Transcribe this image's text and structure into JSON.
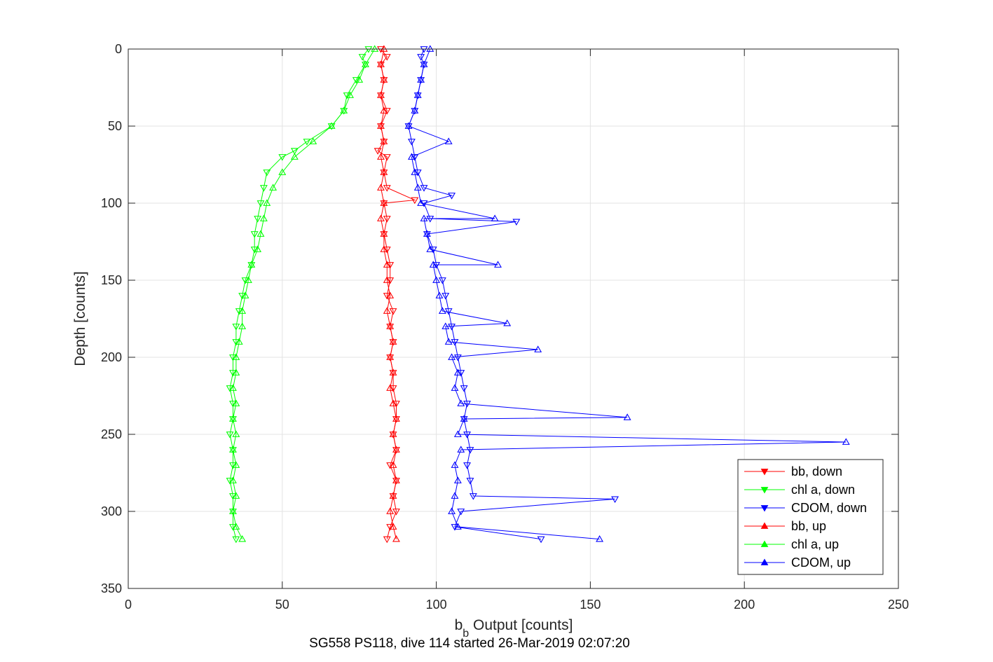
{
  "chart_data": {
    "type": "line",
    "title": "",
    "caption": "SG558 PS118, dive 114 started 26-Mar-2019 02:07:20",
    "xlabel_main": "b",
    "xlabel_sub": "b",
    "xlabel_rest": " Output [counts]",
    "ylabel": "Depth [counts]",
    "xlim": [
      0,
      250
    ],
    "ylim": [
      0,
      350
    ],
    "y_reversed": true,
    "grid": true,
    "legend_position": "bottom-right",
    "xticks": [
      "0",
      "50",
      "100",
      "150",
      "200",
      "250"
    ],
    "yticks": [
      "0",
      "50",
      "100",
      "150",
      "200",
      "250",
      "300",
      "350"
    ],
    "series": [
      {
        "name": "bb, down",
        "color": "#ff0000",
        "marker": "triangle-down",
        "points": [
          [
            82,
            0
          ],
          [
            84,
            5
          ],
          [
            82,
            10
          ],
          [
            83,
            20
          ],
          [
            82,
            30
          ],
          [
            84,
            40
          ],
          [
            82,
            50
          ],
          [
            83,
            60
          ],
          [
            81,
            66
          ],
          [
            84,
            70
          ],
          [
            83,
            80
          ],
          [
            84,
            90
          ],
          [
            93,
            98
          ],
          [
            83,
            100
          ],
          [
            84,
            110
          ],
          [
            83,
            120
          ],
          [
            84,
            130
          ],
          [
            85,
            140
          ],
          [
            85,
            150
          ],
          [
            84,
            160
          ],
          [
            86,
            170
          ],
          [
            85,
            180
          ],
          [
            86,
            190
          ],
          [
            85,
            200
          ],
          [
            86,
            210
          ],
          [
            86,
            220
          ],
          [
            87,
            230
          ],
          [
            87,
            240
          ],
          [
            86,
            250
          ],
          [
            87,
            260
          ],
          [
            85,
            270
          ],
          [
            87,
            280
          ],
          [
            86,
            290
          ],
          [
            87,
            300
          ],
          [
            85,
            310
          ],
          [
            84,
            318
          ]
        ]
      },
      {
        "name": "chl a, down",
        "color": "#00ff00",
        "marker": "triangle-down",
        "points": [
          [
            78,
            0
          ],
          [
            76,
            5
          ],
          [
            77,
            10
          ],
          [
            74,
            20
          ],
          [
            71,
            30
          ],
          [
            70,
            40
          ],
          [
            66,
            50
          ],
          [
            58,
            60
          ],
          [
            54,
            66
          ],
          [
            50,
            70
          ],
          [
            45,
            80
          ],
          [
            44,
            90
          ],
          [
            43,
            100
          ],
          [
            42,
            110
          ],
          [
            41,
            120
          ],
          [
            41,
            130
          ],
          [
            40,
            140
          ],
          [
            38,
            150
          ],
          [
            37,
            160
          ],
          [
            36,
            170
          ],
          [
            35,
            180
          ],
          [
            35,
            190
          ],
          [
            34,
            200
          ],
          [
            34,
            210
          ],
          [
            33,
            220
          ],
          [
            34,
            230
          ],
          [
            34,
            240
          ],
          [
            33,
            250
          ],
          [
            34,
            260
          ],
          [
            34,
            270
          ],
          [
            33,
            280
          ],
          [
            34,
            290
          ],
          [
            34,
            300
          ],
          [
            34,
            310
          ],
          [
            35,
            318
          ]
        ]
      },
      {
        "name": "CDOM, down",
        "color": "#0000ff",
        "marker": "triangle-down",
        "points": [
          [
            96,
            0
          ],
          [
            95,
            5
          ],
          [
            96,
            10
          ],
          [
            95,
            20
          ],
          [
            94,
            30
          ],
          [
            93,
            40
          ],
          [
            91,
            50
          ],
          [
            92,
            60
          ],
          [
            93,
            70
          ],
          [
            94,
            80
          ],
          [
            96,
            90
          ],
          [
            105,
            95
          ],
          [
            96,
            100
          ],
          [
            98,
            110
          ],
          [
            126,
            112
          ],
          [
            97,
            120
          ],
          [
            99,
            130
          ],
          [
            100,
            140
          ],
          [
            102,
            150
          ],
          [
            103,
            160
          ],
          [
            104,
            170
          ],
          [
            105,
            180
          ],
          [
            106,
            190
          ],
          [
            107,
            200
          ],
          [
            108,
            210
          ],
          [
            109,
            220
          ],
          [
            110,
            230
          ],
          [
            109,
            240
          ],
          [
            110,
            250
          ],
          [
            111,
            260
          ],
          [
            110,
            270
          ],
          [
            111,
            280
          ],
          [
            112,
            290
          ],
          [
            158,
            292
          ],
          [
            108,
            300
          ],
          [
            106,
            310
          ],
          [
            134,
            318
          ]
        ]
      },
      {
        "name": "bb, up",
        "color": "#ff0000",
        "marker": "triangle-up",
        "points": [
          [
            87,
            318
          ],
          [
            86,
            310
          ],
          [
            85,
            300
          ],
          [
            86,
            290
          ],
          [
            87,
            280
          ],
          [
            86,
            270
          ],
          [
            87,
            260
          ],
          [
            86,
            250
          ],
          [
            87,
            240
          ],
          [
            86,
            230
          ],
          [
            85,
            220
          ],
          [
            86,
            210
          ],
          [
            85,
            200
          ],
          [
            86,
            190
          ],
          [
            85,
            180
          ],
          [
            84,
            170
          ],
          [
            85,
            160
          ],
          [
            84,
            150
          ],
          [
            84,
            140
          ],
          [
            83,
            130
          ],
          [
            83,
            120
          ],
          [
            82,
            110
          ],
          [
            83,
            100
          ],
          [
            82,
            90
          ],
          [
            83,
            80
          ],
          [
            82,
            70
          ],
          [
            83,
            60
          ],
          [
            82,
            50
          ],
          [
            83,
            40
          ],
          [
            82,
            30
          ],
          [
            83,
            20
          ],
          [
            82,
            10
          ],
          [
            83,
            0
          ]
        ]
      },
      {
        "name": "chl a, up",
        "color": "#00ff00",
        "marker": "triangle-up",
        "points": [
          [
            37,
            318
          ],
          [
            35,
            310
          ],
          [
            34,
            300
          ],
          [
            35,
            290
          ],
          [
            34,
            280
          ],
          [
            35,
            270
          ],
          [
            34,
            260
          ],
          [
            35,
            250
          ],
          [
            34,
            240
          ],
          [
            35,
            230
          ],
          [
            34,
            220
          ],
          [
            35,
            210
          ],
          [
            35,
            200
          ],
          [
            36,
            190
          ],
          [
            37,
            180
          ],
          [
            37,
            170
          ],
          [
            38,
            160
          ],
          [
            39,
            150
          ],
          [
            40,
            140
          ],
          [
            42,
            130
          ],
          [
            43,
            120
          ],
          [
            44,
            110
          ],
          [
            45,
            100
          ],
          [
            47,
            90
          ],
          [
            50,
            80
          ],
          [
            54,
            70
          ],
          [
            60,
            60
          ],
          [
            66,
            50
          ],
          [
            70,
            40
          ],
          [
            72,
            30
          ],
          [
            75,
            20
          ],
          [
            77,
            10
          ],
          [
            80,
            0
          ]
        ]
      },
      {
        "name": "CDOM, up",
        "color": "#0000ff",
        "marker": "triangle-up",
        "points": [
          [
            153,
            318
          ],
          [
            107,
            310
          ],
          [
            105,
            300
          ],
          [
            106,
            290
          ],
          [
            107,
            280
          ],
          [
            106,
            270
          ],
          [
            108,
            260
          ],
          [
            233,
            255
          ],
          [
            107,
            250
          ],
          [
            109,
            240
          ],
          [
            162,
            239
          ],
          [
            108,
            230
          ],
          [
            106,
            220
          ],
          [
            107,
            210
          ],
          [
            105,
            200
          ],
          [
            133,
            195
          ],
          [
            104,
            190
          ],
          [
            103,
            180
          ],
          [
            123,
            178
          ],
          [
            102,
            170
          ],
          [
            101,
            160
          ],
          [
            100,
            150
          ],
          [
            99,
            140
          ],
          [
            120,
            140
          ],
          [
            98,
            130
          ],
          [
            97,
            120
          ],
          [
            96,
            110
          ],
          [
            119,
            110
          ],
          [
            95,
            100
          ],
          [
            94,
            90
          ],
          [
            93,
            80
          ],
          [
            92,
            70
          ],
          [
            104,
            60
          ],
          [
            91,
            50
          ],
          [
            93,
            40
          ],
          [
            94,
            30
          ],
          [
            95,
            20
          ],
          [
            96,
            10
          ],
          [
            98,
            0
          ]
        ]
      }
    ]
  }
}
